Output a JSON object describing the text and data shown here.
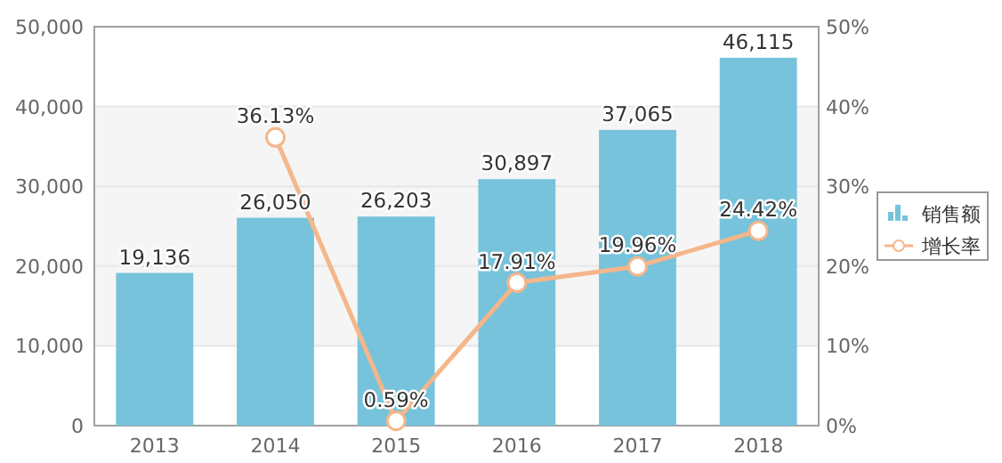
{
  "chart_data": {
    "type": "bar",
    "categories": [
      "2013",
      "2014",
      "2015",
      "2016",
      "2017",
      "2018"
    ],
    "series": [
      {
        "name": "销售额",
        "color": "#76c3db",
        "values": [
          19136,
          26050,
          26203,
          30897,
          37065,
          46115
        ],
        "value_labels": [
          "19,136",
          "26,050",
          "26,203",
          "30,897",
          "37,065",
          "46,115"
        ]
      },
      {
        "name": "增长率",
        "type": "line",
        "axis": "y2",
        "color": "#f5b68a",
        "marker": "circle",
        "values": [
          null,
          36.13,
          0.59,
          17.91,
          19.96,
          24.42
        ],
        "value_labels": [
          null,
          "36.13%",
          "0.59%",
          "17.91%",
          "19.96%",
          "24.42%"
        ]
      }
    ],
    "ylim": [
      0,
      50000
    ],
    "yticks": [
      {
        "value": 0,
        "label": "0"
      },
      {
        "value": 10000,
        "label": "10,000"
      },
      {
        "value": 20000,
        "label": "20,000"
      },
      {
        "value": 30000,
        "label": "30,000"
      },
      {
        "value": 40000,
        "label": "40,000"
      },
      {
        "value": 50000,
        "label": "50,000"
      }
    ],
    "y2lim": [
      0,
      50
    ],
    "y2ticks": [
      {
        "value": 0,
        "label": "0%"
      },
      {
        "value": 10,
        "label": "10%"
      },
      {
        "value": 20,
        "label": "20%"
      },
      {
        "value": 30,
        "label": "30%"
      },
      {
        "value": 40,
        "label": "40%"
      },
      {
        "value": 50,
        "label": "50%"
      }
    ],
    "bands": [
      {
        "axis": "y",
        "from": 10000,
        "to": 40000,
        "color": "#f5f5f5"
      }
    ],
    "grid": "y",
    "legend": "right"
  }
}
